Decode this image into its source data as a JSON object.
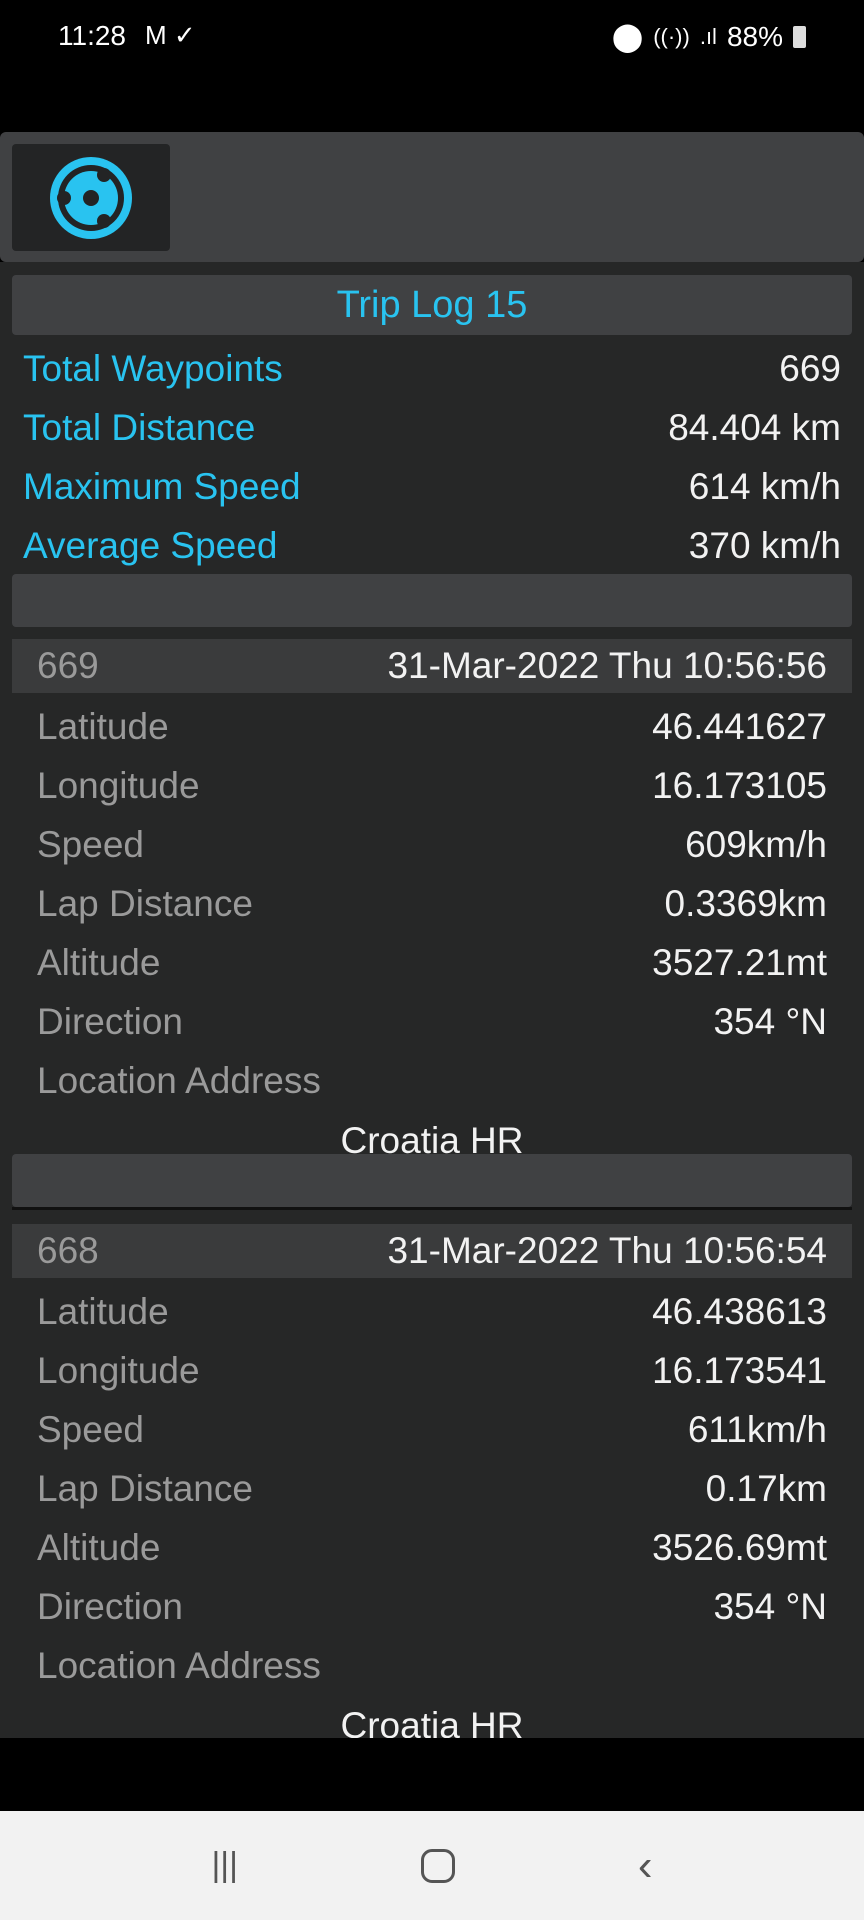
{
  "status_bar": {
    "time": "11:28",
    "battery": "88%",
    "icons": [
      "gmail-icon",
      "download-done-icon",
      "location-icon",
      "wifi-icon",
      "signal-icon",
      "battery-icon"
    ]
  },
  "app_bar": {
    "icon": "settings-gear-icon"
  },
  "accent_color": "#29c3f0",
  "trip": {
    "title": "Trip Log 15",
    "summary": [
      {
        "label": "Total Waypoints",
        "value": "669"
      },
      {
        "label": "Total Distance",
        "value": "84.404 km"
      },
      {
        "label": "Maximum Speed",
        "value": "614 km/h"
      },
      {
        "label": "Average Speed",
        "value": "370 km/h"
      }
    ]
  },
  "waypoints": [
    {
      "number": "669",
      "datetime": "31-Mar-2022 Thu 10:56:56",
      "fields": [
        {
          "label": "Latitude",
          "value": "46.441627"
        },
        {
          "label": "Longitude",
          "value": "16.173105"
        },
        {
          "label": "Speed",
          "value": "609km/h"
        },
        {
          "label": "Lap Distance",
          "value": "0.3369km"
        },
        {
          "label": "Altitude",
          "value": "3527.21mt"
        },
        {
          "label": "Direction",
          "value": "354 °N"
        },
        {
          "label": "Location Address",
          "value": ""
        }
      ],
      "address": "Croatia HR"
    },
    {
      "number": "668",
      "datetime": "31-Mar-2022 Thu 10:56:54",
      "fields": [
        {
          "label": "Latitude",
          "value": "46.438613"
        },
        {
          "label": "Longitude",
          "value": "16.173541"
        },
        {
          "label": "Speed",
          "value": "611km/h"
        },
        {
          "label": "Lap Distance",
          "value": "0.17km"
        },
        {
          "label": "Altitude",
          "value": "3526.69mt"
        },
        {
          "label": "Direction",
          "value": "354 °N"
        },
        {
          "label": "Location Address",
          "value": ""
        }
      ],
      "address": "Croatia HR"
    }
  ],
  "nav_bar": {
    "buttons": [
      "recent-apps-icon",
      "home-icon",
      "back-icon"
    ]
  }
}
